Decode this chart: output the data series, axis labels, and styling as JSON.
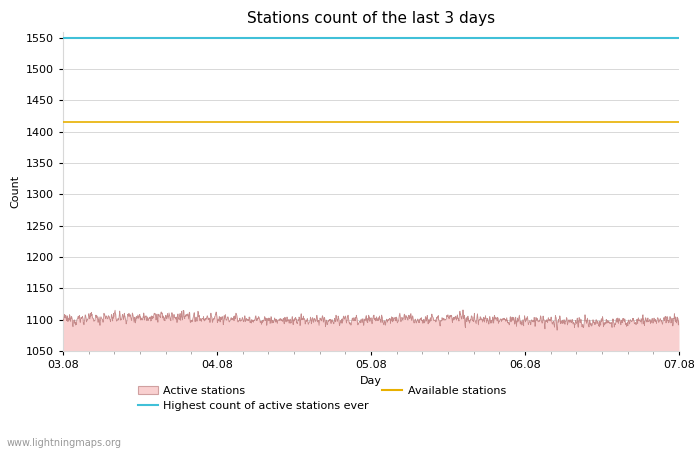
{
  "title": "Stations count of the last 3 days",
  "xlabel": "Day",
  "ylabel": "Count",
  "ylim": [
    1050,
    1560
  ],
  "yticks": [
    1050,
    1100,
    1150,
    1200,
    1250,
    1300,
    1350,
    1400,
    1450,
    1500,
    1550
  ],
  "x_start": 0,
  "x_end": 96,
  "xtick_positions": [
    0,
    24,
    48,
    72,
    96
  ],
  "xtick_labels": [
    "03.08",
    "04.08",
    "05.08",
    "06.08",
    "07.08"
  ],
  "highest_ever": 1549,
  "available_stations": 1415,
  "active_base": 1100,
  "active_noise_amp": 7,
  "active_fill_color": "#f9d0d0",
  "active_line_color": "#c08080",
  "highest_line_color": "#40c0d8",
  "available_line_color": "#e8b000",
  "grid_color": "#d8d8d8",
  "bg_color": "#ffffff",
  "watermark": "www.lightningmaps.org",
  "title_fontsize": 11,
  "label_fontsize": 8,
  "tick_fontsize": 8,
  "legend_fontsize": 8
}
